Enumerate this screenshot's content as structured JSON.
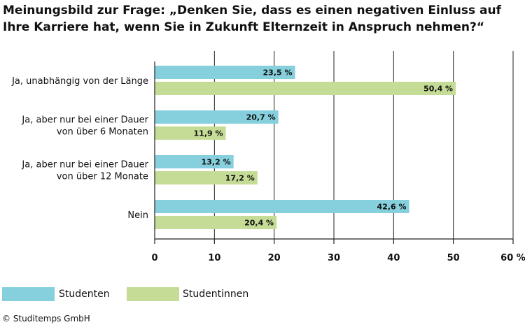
{
  "chart_data": {
    "type": "bar",
    "orientation": "horizontal",
    "title": "Meinungsbild zur Frage: „Denken Sie, dass es einen negativen Einluss auf Ihre Karriere hat, wenn Sie in Zukunft Elternzeit in Anspruch nehmen?“",
    "categories": [
      [
        "Ja, unabhängig von der Länge"
      ],
      [
        "Ja, aber nur bei einer Dauer",
        "von über 6 Monaten"
      ],
      [
        "Ja, aber nur bei einer Dauer",
        "von über 12 Monate"
      ],
      [
        "Nein"
      ]
    ],
    "series": [
      {
        "name": "Studenten",
        "color": "#86cfdc",
        "values": [
          23.5,
          20.7,
          13.2,
          42.6
        ],
        "labels": [
          "23,5 %",
          "20,7 %",
          "13,2 %",
          "42,6 %"
        ]
      },
      {
        "name": "Studentinnen",
        "color": "#c5dc96",
        "values": [
          50.4,
          11.9,
          17.2,
          20.4
        ],
        "labels": [
          "50,4 %",
          "11,9 %",
          "17,2 %",
          "20,4 %"
        ]
      }
    ],
    "xlim": [
      0,
      60
    ],
    "ticks": [
      0,
      10,
      20,
      30,
      40,
      50,
      60
    ],
    "tick_labels": [
      "0",
      "10",
      "20",
      "30",
      "40",
      "50",
      "60 %"
    ],
    "grid": true,
    "legend": "bottom-left"
  },
  "source": "© Studitemps GmbH"
}
